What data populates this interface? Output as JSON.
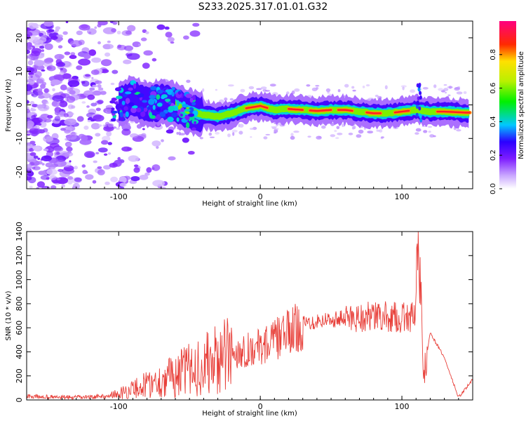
{
  "title": "S233.2025.317.01.01.G32",
  "chart_data": [
    {
      "type": "heatmap",
      "xlabel": "Height of straight line (km)",
      "ylabel": "Frequency (Hz)",
      "xlim": [
        -165,
        150
      ],
      "ylim": [
        -25,
        25
      ],
      "xticks": [
        -100,
        0,
        100
      ],
      "yticks": [
        -20,
        -10,
        0,
        10,
        20
      ],
      "colorbar": {
        "label": "Normalized spectral amplitude",
        "range": [
          0,
          1
        ],
        "ticks": [
          0.0,
          0.2,
          0.4,
          0.6,
          0.8
        ],
        "tick_labels": [
          "0.0",
          "0.2",
          "0.4",
          "0.6",
          "0.8"
        ]
      },
      "ridge": {
        "description": "Main Doppler ridge: frequency (Hz) vs height (km)",
        "x": [
          -100,
          -90,
          -80,
          -70,
          -60,
          -50,
          -40,
          -30,
          -20,
          -10,
          0,
          10,
          20,
          30,
          40,
          50,
          60,
          70,
          80,
          90,
          100,
          110,
          120,
          130,
          145
        ],
        "y": [
          0,
          2,
          0,
          1,
          0,
          -2,
          -3,
          -3.5,
          -2.5,
          -1,
          -0.3,
          -1.5,
          -1.2,
          -1.5,
          -1.8,
          -1.5,
          -1.5,
          -2,
          -2.5,
          -2.5,
          -2,
          -1.5,
          -2,
          -2,
          -2.3
        ]
      }
    },
    {
      "type": "line",
      "xlabel": "Height of straight line (km)",
      "ylabel": "SNR (10 * v/v)",
      "xlim": [
        -165,
        150
      ],
      "ylim": [
        0,
        1400
      ],
      "xticks": [
        -100,
        0,
        100
      ],
      "yticks": [
        0,
        200,
        400,
        600,
        800,
        1000,
        1200,
        1400
      ],
      "color": "#e8403a",
      "series": [
        {
          "name": "SNR",
          "x": [
            -165,
            -150,
            -130,
            -110,
            -100,
            -90,
            -80,
            -70,
            -60,
            -50,
            -40,
            -30,
            -20,
            -10,
            0,
            10,
            20,
            30,
            40,
            50,
            60,
            70,
            80,
            90,
            100,
            105,
            110,
            112,
            115,
            120,
            130,
            140,
            150
          ],
          "values": [
            30,
            25,
            20,
            30,
            50,
            90,
            130,
            160,
            210,
            250,
            290,
            330,
            380,
            420,
            440,
            500,
            560,
            630,
            660,
            670,
            680,
            690,
            690,
            690,
            680,
            690,
            700,
            1380,
            150,
            560,
            350,
            20,
            170
          ]
        }
      ]
    }
  ]
}
